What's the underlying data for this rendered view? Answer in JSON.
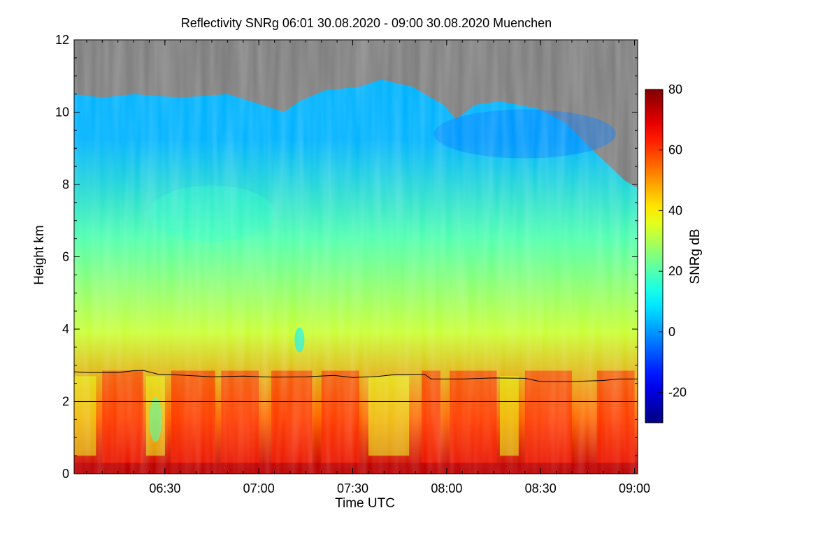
{
  "chart_data": {
    "type": "heatmap",
    "title": "Reflectivity SNRg   06:01 30.08.2020 - 09:00 30.08.2020 Muenchen",
    "xlabel": "Time UTC",
    "ylabel": "Height km",
    "colorbar_label": "SNRg dB",
    "x_range_minutes_utc": [
      361,
      541
    ],
    "y_range_km": [
      0,
      12
    ],
    "x_ticks": [
      {
        "minute": 390,
        "label": "06:30"
      },
      {
        "minute": 420,
        "label": "07:00"
      },
      {
        "minute": 450,
        "label": "07:30"
      },
      {
        "minute": 480,
        "label": "08:00"
      },
      {
        "minute": 510,
        "label": "08:30"
      },
      {
        "minute": 540,
        "label": "09:00"
      }
    ],
    "y_ticks": [
      {
        "value": 0,
        "label": "0"
      },
      {
        "value": 2,
        "label": "2"
      },
      {
        "value": 4,
        "label": "4"
      },
      {
        "value": 6,
        "label": "6"
      },
      {
        "value": 8,
        "label": "8"
      },
      {
        "value": 10,
        "label": "10"
      },
      {
        "value": 12,
        "label": "12"
      }
    ],
    "colorbar_range_db": [
      -30,
      80
    ],
    "colorbar_ticks": [
      {
        "value": -20,
        "label": "-20"
      },
      {
        "value": 0,
        "label": "0"
      },
      {
        "value": 20,
        "label": "20"
      },
      {
        "value": 40,
        "label": "40"
      },
      {
        "value": 60,
        "label": "60"
      },
      {
        "value": 80,
        "label": "80"
      }
    ],
    "no_data_color": "#808080",
    "horizontal_reference_km": 2.0,
    "mixing_layer_height_km": [
      {
        "minute": 361,
        "km": 2.82
      },
      {
        "minute": 366,
        "km": 2.8
      },
      {
        "minute": 375,
        "km": 2.8
      },
      {
        "minute": 380,
        "km": 2.85
      },
      {
        "minute": 383,
        "km": 2.86
      },
      {
        "minute": 388,
        "km": 2.75
      },
      {
        "minute": 395,
        "km": 2.73
      },
      {
        "minute": 405,
        "km": 2.68
      },
      {
        "minute": 415,
        "km": 2.7
      },
      {
        "minute": 425,
        "km": 2.67
      },
      {
        "minute": 435,
        "km": 2.68
      },
      {
        "minute": 444,
        "km": 2.72
      },
      {
        "minute": 450,
        "km": 2.66
      },
      {
        "minute": 458,
        "km": 2.69
      },
      {
        "minute": 464,
        "km": 2.75
      },
      {
        "minute": 473,
        "km": 2.75
      },
      {
        "minute": 475,
        "km": 2.62
      },
      {
        "minute": 485,
        "km": 2.62
      },
      {
        "minute": 495,
        "km": 2.65
      },
      {
        "minute": 505,
        "km": 2.64
      },
      {
        "minute": 510,
        "km": 2.55
      },
      {
        "minute": 520,
        "km": 2.55
      },
      {
        "minute": 530,
        "km": 2.58
      },
      {
        "minute": 535,
        "km": 2.62
      },
      {
        "minute": 541,
        "km": 2.62
      }
    ],
    "cloud_top_km": [
      {
        "minute": 361,
        "km": 10.5
      },
      {
        "minute": 370,
        "km": 10.4
      },
      {
        "minute": 380,
        "km": 10.5
      },
      {
        "minute": 395,
        "km": 10.4
      },
      {
        "minute": 410,
        "km": 10.5
      },
      {
        "minute": 421,
        "km": 10.2
      },
      {
        "minute": 428,
        "km": 10.0
      },
      {
        "minute": 433,
        "km": 10.3
      },
      {
        "minute": 441,
        "km": 10.6
      },
      {
        "minute": 452,
        "km": 10.7
      },
      {
        "minute": 459,
        "km": 10.9
      },
      {
        "minute": 469,
        "km": 10.7
      },
      {
        "minute": 479,
        "km": 10.2
      },
      {
        "minute": 483,
        "km": 9.8
      },
      {
        "minute": 489,
        "km": 10.2
      },
      {
        "minute": 497,
        "km": 10.3
      },
      {
        "minute": 509,
        "km": 10.1
      },
      {
        "minute": 518,
        "km": 9.7
      },
      {
        "minute": 526,
        "km": 9.0
      },
      {
        "minute": 531,
        "km": 8.6
      },
      {
        "minute": 537,
        "km": 8.1
      },
      {
        "minute": 541,
        "km": 7.9
      }
    ],
    "field_description_db": [
      {
        "height_km_min": 0.0,
        "height_km_max": 0.3,
        "typical_db": 72
      },
      {
        "height_km_min": 0.3,
        "height_km_max": 2.8,
        "typical_db": 55
      },
      {
        "height_km_min": 2.8,
        "height_km_max": 5.0,
        "typical_db": 33
      },
      {
        "height_km_min": 5.0,
        "height_km_max": 8.0,
        "typical_db": 20
      },
      {
        "height_km_min": 8.0,
        "height_km_max": 10.5,
        "typical_db": 3
      }
    ]
  }
}
